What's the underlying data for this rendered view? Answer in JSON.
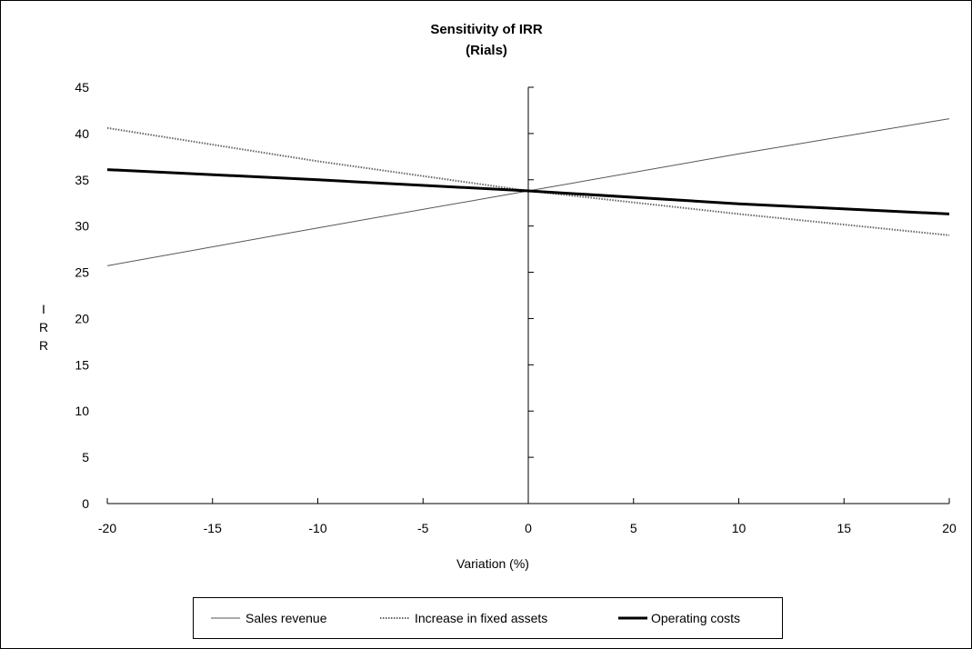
{
  "chart_data": {
    "type": "line",
    "title": "Sensitivity of IRR",
    "subtitle": "(Rials)",
    "xlabel": "Variation (%)",
    "ylabel": "IRR",
    "xlim": [
      -20,
      20
    ],
    "ylim": [
      0,
      45
    ],
    "x_ticks": [
      -20,
      -15,
      -10,
      -5,
      0,
      5,
      10,
      15,
      20
    ],
    "y_ticks": [
      0,
      5,
      10,
      15,
      20,
      25,
      30,
      35,
      40,
      45
    ],
    "grid": false,
    "legend_position": "bottom",
    "x": [
      -20,
      -10,
      0,
      10,
      20
    ],
    "series": [
      {
        "name": "Sales revenue",
        "style": "thin-solid",
        "color": "#555555",
        "values": [
          25.7,
          29.8,
          33.8,
          37.8,
          41.6
        ]
      },
      {
        "name": "Increase in fixed assets",
        "style": "dotted",
        "color": "#666666",
        "values": [
          40.6,
          37.0,
          33.8,
          31.3,
          29.0
        ]
      },
      {
        "name": "Operating costs",
        "style": "thick-solid",
        "color": "#000000",
        "values": [
          36.1,
          35.0,
          33.8,
          32.4,
          31.3
        ]
      }
    ]
  }
}
